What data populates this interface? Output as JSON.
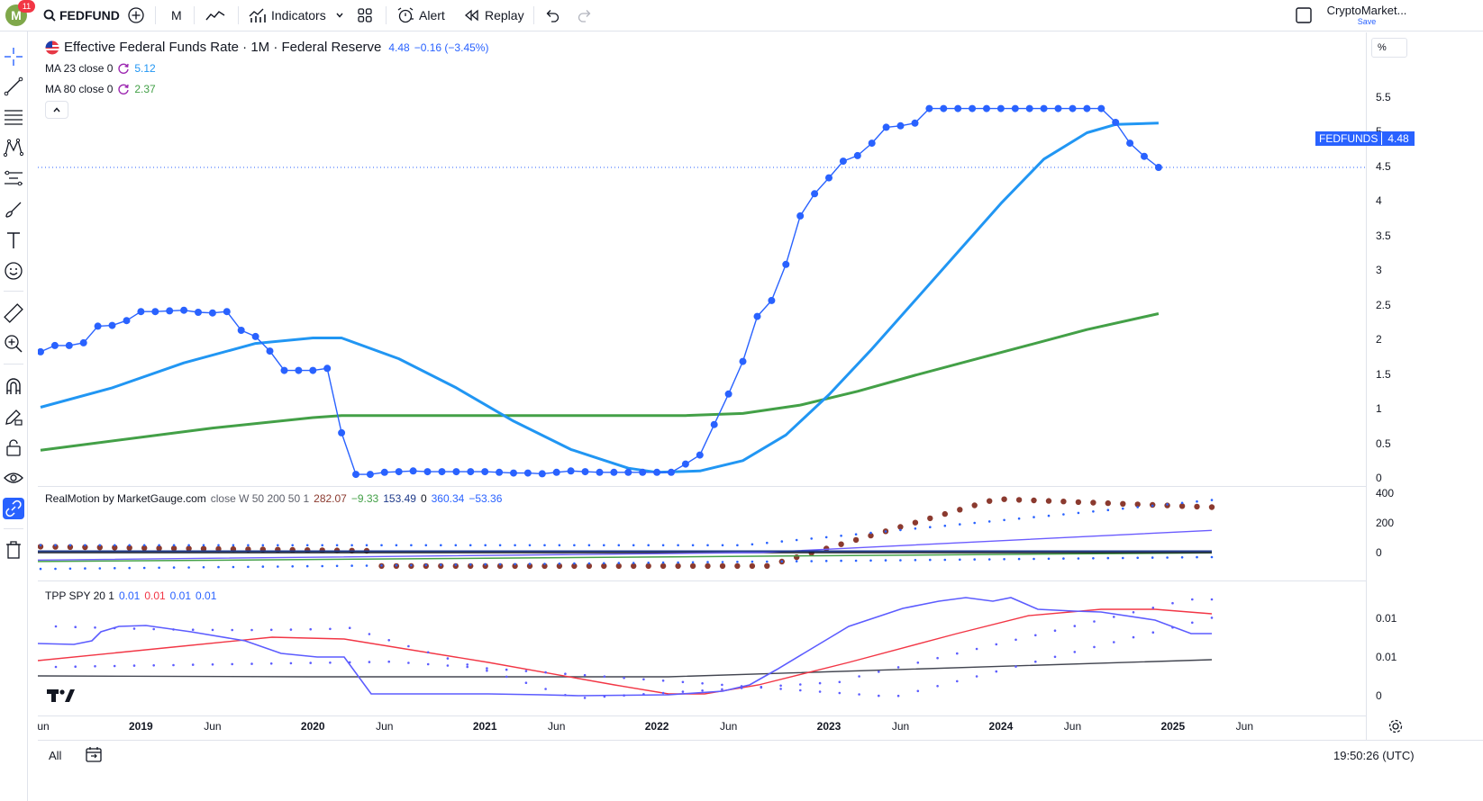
{
  "topbar": {
    "avatar_letter": "M",
    "notification_count": "11",
    "symbol": "FEDFUND",
    "interval": "M",
    "indicators_label": "Indicators",
    "alert_label": "Alert",
    "replay_label": "Replay",
    "layout_name": "CryptoMarket...",
    "layout_save": "Save"
  },
  "legend": {
    "title": "Effective Federal Funds Rate · 1M · Federal Reserve",
    "last": "4.48",
    "change": "−0.16 (−3.45%)",
    "ma23_label": "MA 23 close 0",
    "ma23_value": "5.12",
    "ma80_label": "MA 80 close 0",
    "ma80_value": "2.37",
    "rm_label": "RealMotion by MarketGauge.com",
    "rm_params": "close W 50 200 50 1",
    "rm_v1": "282.07",
    "rm_v2": "−9.33",
    "rm_v3": "153.49",
    "rm_v4": "0",
    "rm_v5": "360.34",
    "rm_v6": "−53.36",
    "tpp_label": "TPP SPY 20 1",
    "tpp_v1": "0.01",
    "tpp_v2": "0.01",
    "tpp_v3": "0.01",
    "tpp_v4": "0.01"
  },
  "price_axis": {
    "unit": "%",
    "ticks": [
      "5.5",
      "5",
      "4.5",
      "4",
      "3.5",
      "3",
      "2.5",
      "2",
      "1.5",
      "1",
      "0.5",
      "0"
    ],
    "last_label_symbol": "FEDFUNDS",
    "last_label_value": "4.48",
    "rm_ticks": [
      "400",
      "200",
      "0"
    ],
    "tpp_ticks": [
      "0.01",
      "0.01",
      "0"
    ]
  },
  "time_axis": {
    "labels": [
      "un",
      "2019",
      "Jun",
      "2020",
      "Jun",
      "2021",
      "Jun",
      "2022",
      "Jun",
      "2023",
      "Jun",
      "2024",
      "Jun",
      "2025",
      "Jun"
    ]
  },
  "bottombar": {
    "range_all": "All",
    "clock": "19:50:26 (UTC)"
  },
  "colors": {
    "price": "#2962ff",
    "ma23": "#2196f3",
    "ma80": "#43a047",
    "rm_dots": "#8b3a2f",
    "tpp_red": "#f23645",
    "tpp_blue": "#5c5cff"
  },
  "chart_data": {
    "type": "line",
    "title": "Effective Federal Funds Rate · 1M · Federal Reserve",
    "ylabel": "%",
    "ylim": [
      -0.3,
      5.7
    ],
    "x_range": [
      "2018-06",
      "2025-10"
    ],
    "series": [
      {
        "name": "FEDFUNDS",
        "marker": "dot",
        "x": [
          "2018-06",
          "2018-07",
          "2018-08",
          "2018-09",
          "2018-10",
          "2018-11",
          "2018-12",
          "2019-01",
          "2019-02",
          "2019-03",
          "2019-04",
          "2019-05",
          "2019-06",
          "2019-07",
          "2019-08",
          "2019-09",
          "2019-10",
          "2019-11",
          "2019-12",
          "2020-01",
          "2020-02",
          "2020-03",
          "2020-04",
          "2020-05",
          "2020-06",
          "2020-07",
          "2020-08",
          "2020-09",
          "2020-10",
          "2020-11",
          "2020-12",
          "2021-01",
          "2021-02",
          "2021-03",
          "2021-04",
          "2021-05",
          "2021-06",
          "2021-07",
          "2021-08",
          "2021-09",
          "2021-10",
          "2021-11",
          "2021-12",
          "2022-01",
          "2022-02",
          "2022-03",
          "2022-04",
          "2022-05",
          "2022-06",
          "2022-07",
          "2022-08",
          "2022-09",
          "2022-10",
          "2022-11",
          "2022-12",
          "2023-01",
          "2023-02",
          "2023-03",
          "2023-04",
          "2023-05",
          "2023-06",
          "2023-07",
          "2023-08",
          "2023-09",
          "2023-10",
          "2023-11",
          "2023-12",
          "2024-01",
          "2024-02",
          "2024-03",
          "2024-04",
          "2024-05",
          "2024-06",
          "2024-07",
          "2024-08",
          "2024-09",
          "2024-10",
          "2024-11",
          "2024-12"
        ],
        "y": [
          1.82,
          1.91,
          1.91,
          1.95,
          2.19,
          2.2,
          2.27,
          2.4,
          2.4,
          2.41,
          2.42,
          2.39,
          2.38,
          2.4,
          2.13,
          2.04,
          1.83,
          1.55,
          1.55,
          1.55,
          1.58,
          0.65,
          0.05,
          0.05,
          0.08,
          0.09,
          0.1,
          0.09,
          0.09,
          0.09,
          0.09,
          0.09,
          0.08,
          0.07,
          0.07,
          0.06,
          0.08,
          0.1,
          0.09,
          0.08,
          0.08,
          0.08,
          0.08,
          0.08,
          0.08,
          0.2,
          0.33,
          0.77,
          1.21,
          1.68,
          2.33,
          2.56,
          3.08,
          3.78,
          4.1,
          4.33,
          4.57,
          4.65,
          4.83,
          5.06,
          5.08,
          5.12,
          5.33,
          5.33,
          5.33,
          5.33,
          5.33,
          5.33,
          5.33,
          5.33,
          5.33,
          5.33,
          5.33,
          5.33,
          5.33,
          5.13,
          4.83,
          4.64,
          4.48
        ]
      },
      {
        "name": "MA 23 close 0",
        "x": [
          "2018-06",
          "2018-11",
          "2019-04",
          "2019-09",
          "2020-01",
          "2020-03",
          "2020-07",
          "2020-11",
          "2021-03",
          "2021-07",
          "2021-11",
          "2022-01",
          "2022-04",
          "2022-07",
          "2022-10",
          "2023-01",
          "2023-04",
          "2023-07",
          "2023-10",
          "2024-01",
          "2024-04",
          "2024-07",
          "2024-09",
          "2024-12"
        ],
        "y": [
          1.02,
          1.3,
          1.66,
          1.94,
          2.02,
          2.02,
          1.72,
          1.3,
          0.82,
          0.41,
          0.14,
          0.08,
          0.1,
          0.25,
          0.62,
          1.2,
          1.86,
          2.56,
          3.26,
          3.96,
          4.6,
          4.98,
          5.1,
          5.12
        ]
      },
      {
        "name": "MA 80 close 0",
        "x": [
          "2018-06",
          "2019-06",
          "2020-01",
          "2020-03",
          "2021-01",
          "2022-03",
          "2022-07",
          "2022-11",
          "2023-03",
          "2023-07",
          "2023-11",
          "2024-03",
          "2024-07",
          "2024-12"
        ],
        "y": [
          0.4,
          0.72,
          0.87,
          0.9,
          0.9,
          0.9,
          0.93,
          1.05,
          1.25,
          1.48,
          1.7,
          1.92,
          2.14,
          2.37
        ]
      }
    ]
  }
}
